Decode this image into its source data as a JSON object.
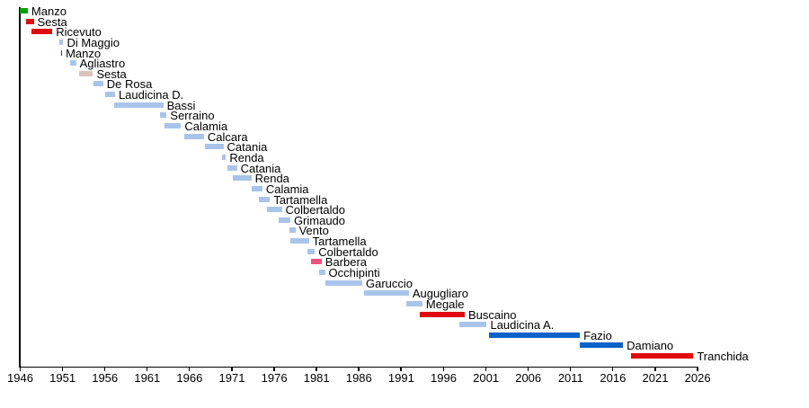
{
  "page": {
    "background": "#ffffff"
  },
  "chart_data": {
    "type": "bar",
    "variant": "horizontal-timeline-gantt",
    "title": "",
    "xlabel": "",
    "ylabel": "",
    "grid": false,
    "legend": "none",
    "x_axis": {
      "min": 1946,
      "max": 2027,
      "tick_interval": 5,
      "tick_years": [
        1946,
        1951,
        1956,
        1961,
        1966,
        1971,
        1976,
        1981,
        1986,
        1991,
        1996,
        2001,
        2006,
        2011,
        2016,
        2021,
        2026
      ]
    },
    "colors": {
      "lightblue": "#a9c4ea",
      "green": "#00a000",
      "red": "#e00c0c",
      "palepink": "#d9c2bc",
      "pink": "#ed5380",
      "darkblue": "#0b62c9",
      "axis": "#000000",
      "text": "#000000"
    },
    "series": [
      {
        "label": "Manzo",
        "start": 1946.0,
        "end": 1947.0,
        "color": "green"
      },
      {
        "label": "Sesta",
        "start": 1946.8,
        "end": 1947.7,
        "color": "red"
      },
      {
        "label": "Ricevuto",
        "start": 1947.4,
        "end": 1949.9,
        "color": "red"
      },
      {
        "label": "Di Maggio",
        "start": 1950.7,
        "end": 1951.2,
        "color": "lightblue"
      },
      {
        "label": "Manzo",
        "start": 1950.9,
        "end": 1951.05,
        "color": "red"
      },
      {
        "label": "Agliastro",
        "start": 1952.0,
        "end": 1952.7,
        "color": "lightblue"
      },
      {
        "label": "Sesta",
        "start": 1953.1,
        "end": 1954.7,
        "color": "palepink"
      },
      {
        "label": "De Rosa",
        "start": 1954.8,
        "end": 1955.9,
        "color": "lightblue"
      },
      {
        "label": "Laudicina D.",
        "start": 1956.1,
        "end": 1957.3,
        "color": "lightblue"
      },
      {
        "label": "Bassi",
        "start": 1957.2,
        "end": 1963.0,
        "color": "lightblue"
      },
      {
        "label": "Serraino",
        "start": 1962.6,
        "end": 1963.4,
        "color": "lightblue"
      },
      {
        "label": "Calamia",
        "start": 1963.1,
        "end": 1965.1,
        "color": "lightblue"
      },
      {
        "label": "Calcara",
        "start": 1965.5,
        "end": 1967.8,
        "color": "lightblue"
      },
      {
        "label": "Catania",
        "start": 1967.9,
        "end": 1970.1,
        "color": "lightblue"
      },
      {
        "label": "Renda",
        "start": 1969.9,
        "end": 1970.4,
        "color": "lightblue"
      },
      {
        "label": "Catania",
        "start": 1970.6,
        "end": 1971.7,
        "color": "lightblue"
      },
      {
        "label": "Renda",
        "start": 1971.2,
        "end": 1973.4,
        "color": "lightblue"
      },
      {
        "label": "Calamia",
        "start": 1973.4,
        "end": 1974.7,
        "color": "lightblue"
      },
      {
        "label": "Tartamella",
        "start": 1974.3,
        "end": 1975.6,
        "color": "lightblue"
      },
      {
        "label": "Colbertaldo",
        "start": 1975.2,
        "end": 1977.0,
        "color": "lightblue"
      },
      {
        "label": "Grimaudo",
        "start": 1976.6,
        "end": 1978.0,
        "color": "lightblue"
      },
      {
        "label": "Vento",
        "start": 1977.9,
        "end": 1978.6,
        "color": "lightblue"
      },
      {
        "label": "Tartamella",
        "start": 1978.0,
        "end": 1980.2,
        "color": "lightblue"
      },
      {
        "label": "Colbertaldo",
        "start": 1980.0,
        "end": 1980.9,
        "color": "lightblue"
      },
      {
        "label": "Barbera",
        "start": 1980.5,
        "end": 1981.7,
        "color": "pink"
      },
      {
        "label": "Occhipinti",
        "start": 1981.4,
        "end": 1982.1,
        "color": "lightblue"
      },
      {
        "label": "Garuccio",
        "start": 1982.1,
        "end": 1986.5,
        "color": "lightblue"
      },
      {
        "label": "Augugliaro",
        "start": 1986.7,
        "end": 1992.0,
        "color": "lightblue"
      },
      {
        "label": "Megale",
        "start": 1991.7,
        "end": 1993.6,
        "color": "lightblue"
      },
      {
        "label": "Buscaino",
        "start": 1993.3,
        "end": 1998.6,
        "color": "red"
      },
      {
        "label": "Laudicina A.",
        "start": 1998.0,
        "end": 2001.2,
        "color": "lightblue"
      },
      {
        "label": "Fazio",
        "start": 2001.5,
        "end": 2012.2,
        "color": "darkblue"
      },
      {
        "label": "Damiano",
        "start": 2012.2,
        "end": 2017.3,
        "color": "darkblue"
      },
      {
        "label": "Tranchida",
        "start": 2018.2,
        "end": 2025.6,
        "color": "red"
      }
    ]
  }
}
